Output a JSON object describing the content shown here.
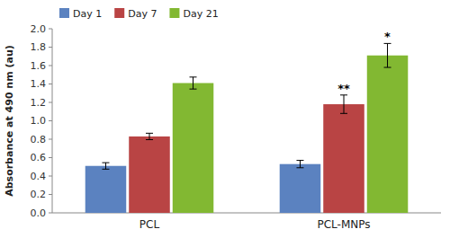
{
  "chart_data": {
    "type": "bar",
    "categories": [
      "PCL",
      "PCL-MNPs"
    ],
    "series": [
      {
        "name": "Day 1",
        "color": "#5b82c0",
        "values": [
          0.51,
          0.53
        ],
        "errors": [
          0.035,
          0.04
        ]
      },
      {
        "name": "Day 7",
        "color": "#b94444",
        "values": [
          0.83,
          1.18
        ],
        "errors": [
          0.035,
          0.1
        ]
      },
      {
        "name": "Day 21",
        "color": "#82b832",
        "values": [
          1.41,
          1.71
        ],
        "errors": [
          0.065,
          0.13
        ]
      }
    ],
    "ylabel": "Absorbance at 490 nm (au)",
    "ylim": [
      0,
      2.0
    ],
    "yticks": [
      {
        "value": 0,
        "label": "0.0"
      },
      0.2,
      0.4,
      0.6,
      0.8,
      {
        "value": 1,
        "label": "1.0"
      },
      1.2,
      1.4,
      1.6,
      1.8,
      {
        "value": 2,
        "label": "2.0"
      }
    ],
    "legend": "upper left",
    "annotations": [
      {
        "text": "**",
        "category": "PCL-MNPs",
        "series": "Day 7"
      },
      {
        "text": "*",
        "category": "PCL-MNPs",
        "series": "Day 21"
      }
    ]
  }
}
